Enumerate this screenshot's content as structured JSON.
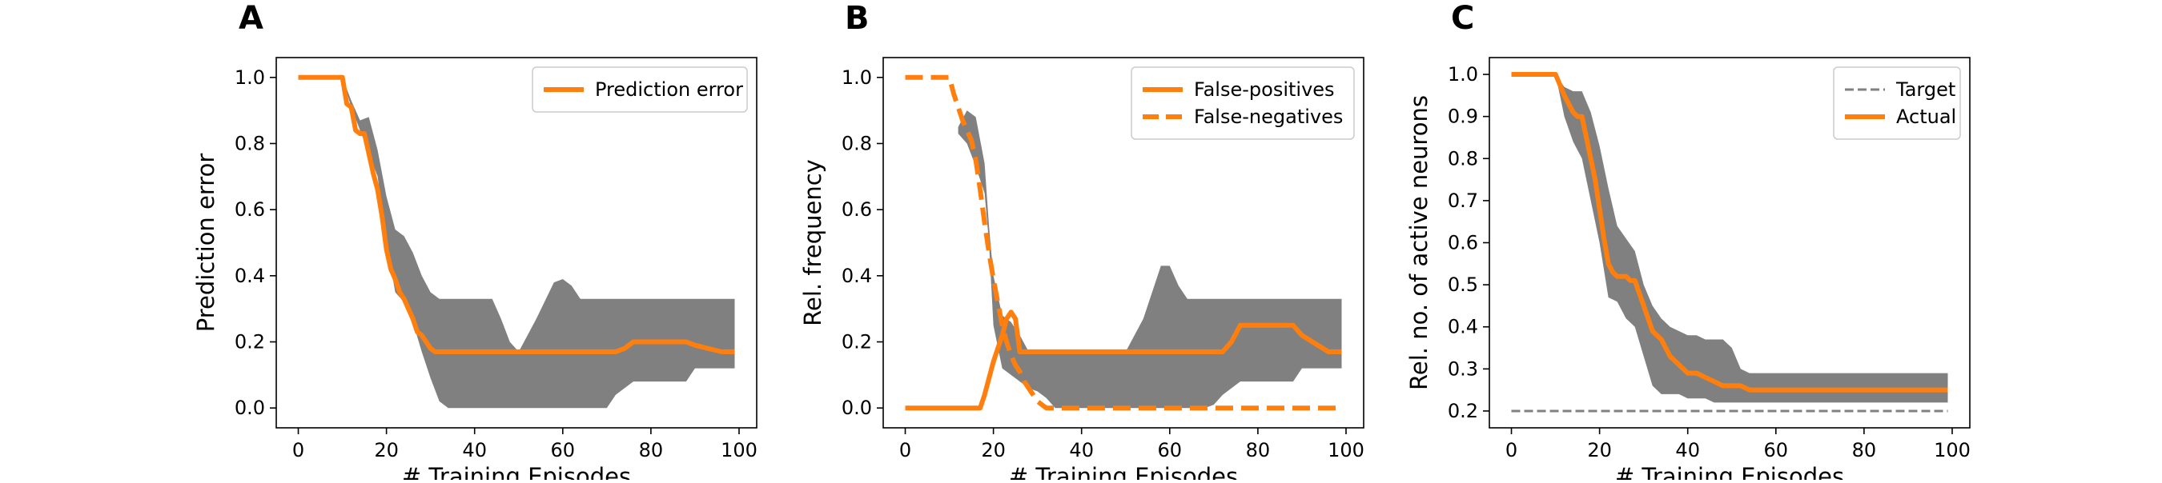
{
  "colors": {
    "series": "#ff7f0e",
    "band": "#808080",
    "target": "#808080",
    "frame": "#000000"
  },
  "chart_data": [
    {
      "type": "line",
      "panel_label": "A",
      "xlabel": "# Training Episodes",
      "ylabel": "Prediction error",
      "xlim": [
        -5,
        104
      ],
      "ylim": [
        -0.06,
        1.06
      ],
      "xticks": [
        0,
        20,
        40,
        60,
        80,
        100
      ],
      "yticks": [
        0.0,
        0.2,
        0.4,
        0.6,
        0.8,
        1.0
      ],
      "ytick_labels": [
        "0.0",
        "0.2",
        "0.4",
        "0.6",
        "0.8",
        "1.0"
      ],
      "legend_position": "top-right",
      "band": {
        "x": [
          10,
          12,
          14,
          16,
          18,
          20,
          22,
          24,
          26,
          28,
          30,
          32,
          34,
          40,
          44,
          46,
          48,
          50,
          52,
          54,
          58,
          60,
          62,
          64,
          70,
          72,
          76,
          80,
          88,
          90,
          99
        ],
        "upper": [
          1.0,
          0.93,
          0.87,
          0.88,
          0.78,
          0.64,
          0.54,
          0.52,
          0.47,
          0.4,
          0.35,
          0.33,
          0.33,
          0.33,
          0.33,
          0.27,
          0.2,
          0.17,
          0.22,
          0.27,
          0.38,
          0.39,
          0.37,
          0.33,
          0.33,
          0.33,
          0.33,
          0.33,
          0.33,
          0.33,
          0.33
        ],
        "lower": [
          1.0,
          0.91,
          0.84,
          0.77,
          0.7,
          0.5,
          0.35,
          0.32,
          0.26,
          0.17,
          0.09,
          0.02,
          0.0,
          0.0,
          0.0,
          0.0,
          0.0,
          0.0,
          0.0,
          0.0,
          0.0,
          0.0,
          0.0,
          0.0,
          0.0,
          0.04,
          0.08,
          0.08,
          0.08,
          0.12,
          0.12
        ]
      },
      "series": [
        {
          "name": "Prediction error",
          "style": "solid",
          "x": [
            0,
            10,
            11,
            12,
            13,
            14,
            15,
            16,
            17,
            18,
            19,
            20,
            21,
            22,
            23,
            24,
            25,
            26,
            27,
            28,
            29,
            30,
            31,
            32,
            34,
            40,
            50,
            60,
            70,
            72,
            74,
            76,
            78,
            80,
            88,
            90,
            96,
            99
          ],
          "y": [
            1.0,
            1.0,
            0.92,
            0.91,
            0.84,
            0.83,
            0.83,
            0.77,
            0.71,
            0.66,
            0.58,
            0.48,
            0.42,
            0.39,
            0.35,
            0.33,
            0.3,
            0.27,
            0.23,
            0.22,
            0.2,
            0.18,
            0.17,
            0.17,
            0.17,
            0.17,
            0.17,
            0.17,
            0.17,
            0.17,
            0.18,
            0.2,
            0.2,
            0.2,
            0.2,
            0.19,
            0.17,
            0.17
          ]
        }
      ]
    },
    {
      "type": "line",
      "panel_label": "B",
      "xlabel": "# Training Episodes",
      "ylabel": "Rel. frequency",
      "xlim": [
        -5,
        104
      ],
      "ylim": [
        -0.06,
        1.06
      ],
      "xticks": [
        0,
        20,
        40,
        60,
        80,
        100
      ],
      "yticks": [
        0.0,
        0.2,
        0.4,
        0.6,
        0.8,
        1.0
      ],
      "ytick_labels": [
        "0.0",
        "0.2",
        "0.4",
        "0.6",
        "0.8",
        "1.0"
      ],
      "legend_position": "top-right",
      "band": {
        "x": [
          12,
          14,
          16,
          18,
          19,
          20,
          22,
          24,
          26,
          28,
          30,
          32,
          34,
          40,
          50,
          52,
          54,
          56,
          58,
          60,
          62,
          64,
          66,
          68,
          70,
          72,
          76,
          80,
          88,
          90,
          99
        ],
        "upper": [
          0.85,
          0.9,
          0.88,
          0.74,
          0.55,
          0.4,
          0.28,
          0.26,
          0.22,
          0.17,
          0.17,
          0.17,
          0.17,
          0.17,
          0.17,
          0.22,
          0.27,
          0.35,
          0.43,
          0.43,
          0.37,
          0.33,
          0.33,
          0.33,
          0.33,
          0.33,
          0.33,
          0.33,
          0.33,
          0.33,
          0.33
        ],
        "lower": [
          0.83,
          0.8,
          0.73,
          0.65,
          0.5,
          0.25,
          0.12,
          0.1,
          0.08,
          0.06,
          0.05,
          0.03,
          0.0,
          0.0,
          0.0,
          0.0,
          0.0,
          0.0,
          0.0,
          0.0,
          0.0,
          0.0,
          0.0,
          0.0,
          0.01,
          0.04,
          0.08,
          0.08,
          0.08,
          0.12,
          0.12
        ]
      },
      "series": [
        {
          "name": "False-positives",
          "style": "solid",
          "x": [
            0,
            17,
            18,
            19,
            20,
            21,
            22,
            23,
            24,
            25,
            26,
            27,
            28,
            30,
            40,
            50,
            60,
            70,
            72,
            74,
            76,
            80,
            88,
            90,
            96,
            99
          ],
          "y": [
            0.0,
            0.0,
            0.04,
            0.09,
            0.14,
            0.18,
            0.22,
            0.27,
            0.29,
            0.27,
            0.17,
            0.17,
            0.17,
            0.17,
            0.17,
            0.17,
            0.17,
            0.17,
            0.17,
            0.2,
            0.25,
            0.25,
            0.25,
            0.22,
            0.17,
            0.17
          ]
        },
        {
          "name": "False-negatives",
          "style": "dashed",
          "x": [
            0,
            10,
            11,
            12,
            13,
            14,
            15,
            16,
            17,
            18,
            19,
            20,
            21,
            22,
            23,
            24,
            25,
            26,
            27,
            28,
            29,
            30,
            31,
            32,
            33,
            34,
            40,
            50,
            60,
            70,
            80,
            90,
            99
          ],
          "y": [
            1.0,
            1.0,
            0.95,
            0.91,
            0.87,
            0.84,
            0.81,
            0.75,
            0.66,
            0.56,
            0.47,
            0.39,
            0.32,
            0.25,
            0.2,
            0.16,
            0.13,
            0.11,
            0.08,
            0.06,
            0.04,
            0.02,
            0.01,
            0.0,
            0.0,
            0.0,
            0.0,
            0.0,
            0.0,
            0.0,
            0.0,
            0.0,
            0.0
          ]
        }
      ]
    },
    {
      "type": "line",
      "panel_label": "C",
      "xlabel": "# Training Episodes",
      "ylabel": "Rel. no. of active neurons",
      "xlim": [
        -5,
        104
      ],
      "ylim": [
        0.16,
        1.04
      ],
      "xticks": [
        0,
        20,
        40,
        60,
        80,
        100
      ],
      "yticks": [
        0.2,
        0.3,
        0.4,
        0.5,
        0.6,
        0.7,
        0.8,
        0.9,
        1.0
      ],
      "ytick_labels": [
        "0.2",
        "0.3",
        "0.4",
        "0.5",
        "0.6",
        "0.7",
        "0.8",
        "0.9",
        "1.0"
      ],
      "legend_position": "top-right",
      "band": {
        "x": [
          10,
          12,
          14,
          16,
          18,
          20,
          22,
          24,
          26,
          28,
          30,
          32,
          34,
          36,
          38,
          40,
          42,
          44,
          46,
          48,
          50,
          52,
          54,
          60,
          70,
          80,
          90,
          99
        ],
        "upper": [
          1.0,
          0.97,
          0.96,
          0.96,
          0.91,
          0.83,
          0.73,
          0.64,
          0.61,
          0.58,
          0.5,
          0.45,
          0.42,
          0.4,
          0.39,
          0.38,
          0.38,
          0.37,
          0.37,
          0.37,
          0.35,
          0.3,
          0.29,
          0.29,
          0.29,
          0.29,
          0.29,
          0.29
        ],
        "lower": [
          1.0,
          0.9,
          0.84,
          0.8,
          0.7,
          0.6,
          0.47,
          0.46,
          0.42,
          0.4,
          0.33,
          0.26,
          0.24,
          0.24,
          0.24,
          0.23,
          0.23,
          0.23,
          0.22,
          0.22,
          0.22,
          0.22,
          0.22,
          0.22,
          0.22,
          0.22,
          0.22,
          0.22
        ]
      },
      "series": [
        {
          "name": "Target",
          "style": "dashed-thin",
          "x": [
            0,
            99
          ],
          "y": [
            0.2,
            0.2
          ]
        },
        {
          "name": "Actual",
          "style": "solid",
          "x": [
            0,
            10,
            12,
            14,
            15,
            16,
            17,
            18,
            19,
            20,
            21,
            22,
            23,
            24,
            25,
            26,
            27,
            28,
            29,
            30,
            31,
            32,
            33,
            34,
            35,
            36,
            37,
            38,
            39,
            40,
            42,
            44,
            46,
            48,
            50,
            52,
            54,
            60,
            70,
            80,
            90,
            99
          ],
          "y": [
            1.0,
            1.0,
            0.95,
            0.91,
            0.9,
            0.9,
            0.85,
            0.8,
            0.75,
            0.68,
            0.61,
            0.55,
            0.53,
            0.52,
            0.52,
            0.52,
            0.51,
            0.51,
            0.48,
            0.45,
            0.42,
            0.39,
            0.38,
            0.37,
            0.35,
            0.33,
            0.32,
            0.31,
            0.3,
            0.29,
            0.29,
            0.28,
            0.27,
            0.26,
            0.26,
            0.26,
            0.25,
            0.25,
            0.25,
            0.25,
            0.25,
            0.25
          ]
        }
      ]
    }
  ]
}
